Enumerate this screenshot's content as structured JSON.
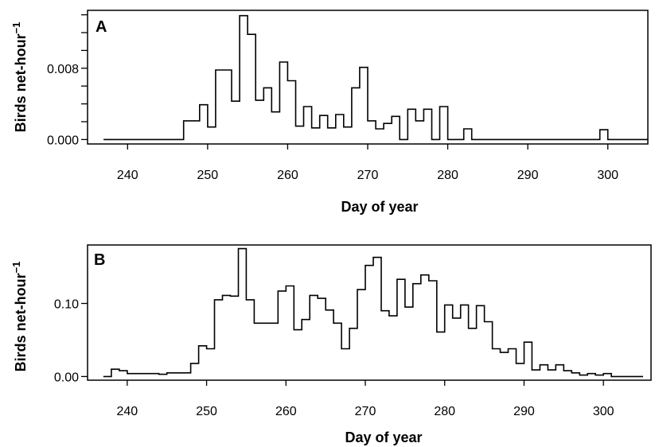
{
  "chart_data": [
    {
      "type": "line",
      "step": true,
      "panel_label": "A",
      "xlabel": "Day of year",
      "ylabel": "Birds net-hour",
      "ylabel_superscript": "−1",
      "xlim": [
        235,
        305
      ],
      "ylim": [
        -0.0005,
        0.0145
      ],
      "xticks": [
        240,
        250,
        260,
        270,
        280,
        290,
        300
      ],
      "yticks": [
        0.0,
        0.008
      ],
      "ytick_labels": [
        "0.000",
        "0.008"
      ],
      "yminor_ticks": [
        0.002,
        0.004,
        0.006,
        0.01,
        0.012,
        0.014
      ],
      "grid": false,
      "x": [
        237,
        247,
        248,
        249,
        250,
        251,
        253,
        254,
        255,
        256,
        257,
        258,
        259,
        260,
        261,
        262,
        263,
        264,
        265,
        266,
        267,
        268,
        269,
        270,
        271,
        272,
        273,
        274,
        275,
        276,
        277,
        278,
        279,
        280,
        282,
        283,
        299,
        300,
        305
      ],
      "values": [
        0.0,
        0.0021,
        0.0021,
        0.0039,
        0.0014,
        0.0078,
        0.0043,
        0.0139,
        0.0118,
        0.0044,
        0.0058,
        0.0031,
        0.0087,
        0.0066,
        0.0015,
        0.0037,
        0.0013,
        0.0027,
        0.0013,
        0.0028,
        0.0014,
        0.0058,
        0.0081,
        0.0021,
        0.0012,
        0.0018,
        0.0026,
        0.0,
        0.0034,
        0.0021,
        0.0034,
        0.0,
        0.0037,
        0.0,
        0.0012,
        0.0,
        0.0011,
        0.0,
        0.0
      ]
    },
    {
      "type": "line",
      "step": true,
      "panel_label": "B",
      "xlabel": "Day of year",
      "ylabel": "Birds net-hour",
      "ylabel_superscript": "−1",
      "xlim": [
        235,
        306
      ],
      "ylim": [
        -0.005,
        0.18
      ],
      "xticks": [
        240,
        250,
        260,
        270,
        280,
        290,
        300
      ],
      "yticks": [
        0.0,
        0.1
      ],
      "ytick_labels": [
        "0.00",
        "0.10"
      ],
      "grid": false,
      "x": [
        237,
        238,
        239,
        240,
        244,
        245,
        247,
        248,
        249,
        250,
        251,
        252,
        253,
        254,
        255,
        256,
        258,
        259,
        260,
        261,
        262,
        263,
        264,
        265,
        266,
        267,
        268,
        269,
        270,
        271,
        272,
        273,
        274,
        275,
        276,
        277,
        278,
        279,
        280,
        281,
        282,
        283,
        284,
        285,
        286,
        287,
        288,
        289,
        290,
        291,
        292,
        293,
        294,
        295,
        296,
        297,
        298,
        299,
        300,
        301,
        305
      ],
      "values": [
        0.0,
        0.01,
        0.008,
        0.004,
        0.003,
        0.005,
        0.005,
        0.018,
        0.042,
        0.038,
        0.105,
        0.111,
        0.11,
        0.175,
        0.105,
        0.073,
        0.073,
        0.117,
        0.124,
        0.064,
        0.078,
        0.111,
        0.107,
        0.091,
        0.073,
        0.038,
        0.066,
        0.119,
        0.152,
        0.163,
        0.09,
        0.083,
        0.133,
        0.095,
        0.127,
        0.139,
        0.131,
        0.061,
        0.098,
        0.08,
        0.098,
        0.066,
        0.097,
        0.075,
        0.038,
        0.033,
        0.038,
        0.018,
        0.047,
        0.009,
        0.016,
        0.009,
        0.016,
        0.008,
        0.005,
        0.002,
        0.004,
        0.002,
        0.004,
        0.0,
        0.0
      ]
    }
  ]
}
